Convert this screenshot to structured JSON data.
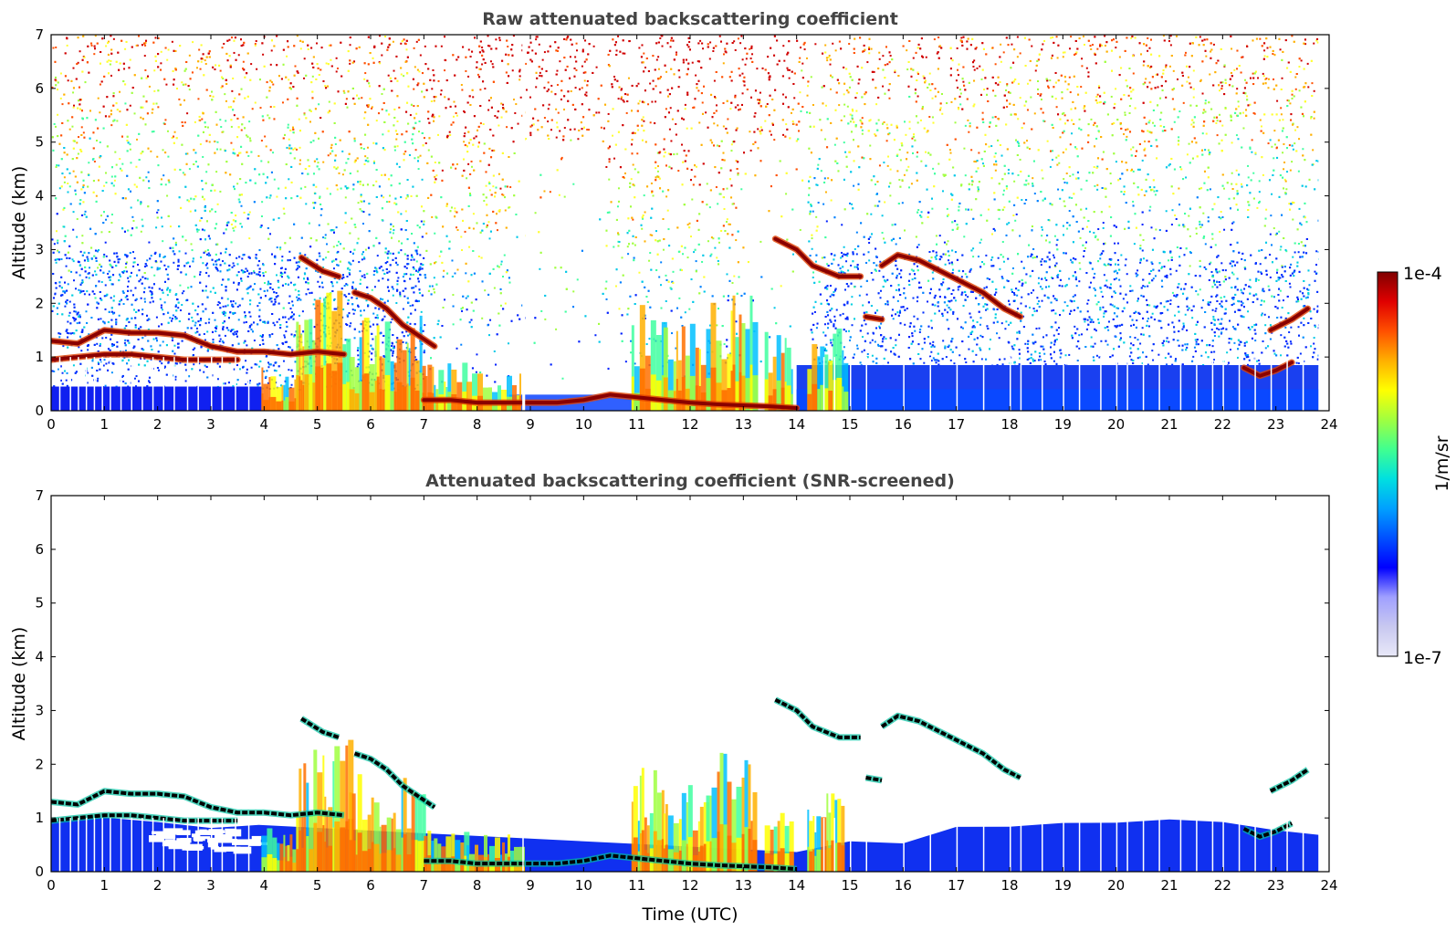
{
  "chart_data": [
    {
      "type": "heatmap",
      "title": "Raw attenuated backscattering coefficient",
      "xlabel": "",
      "ylabel": "Altitude (km)",
      "xlim": [
        0,
        24
      ],
      "ylim": [
        0,
        7
      ],
      "x_ticks": [
        "0",
        "1",
        "2",
        "3",
        "4",
        "5",
        "6",
        "7",
        "8",
        "9",
        "10",
        "11",
        "12",
        "13",
        "14",
        "15",
        "16",
        "17",
        "18",
        "19",
        "20",
        "21",
        "22",
        "23",
        "24"
      ],
      "y_ticks": [
        "0",
        "1",
        "2",
        "3",
        "4",
        "5",
        "6",
        "7"
      ],
      "data_end_time": 23.8,
      "boundary_layer_top_km": 0.45,
      "cloud_layers": [
        {
          "name": "layer_a",
          "points": [
            [
              0,
              1.3
            ],
            [
              0.5,
              1.25
            ],
            [
              1,
              1.5
            ],
            [
              1.5,
              1.45
            ],
            [
              2,
              1.45
            ],
            [
              2.5,
              1.4
            ],
            [
              3,
              1.2
            ],
            [
              3.5,
              1.1
            ],
            [
              4,
              1.1
            ],
            [
              4.5,
              1.05
            ],
            [
              5,
              1.1
            ],
            [
              5.5,
              1.05
            ]
          ]
        },
        {
          "name": "layer_b",
          "points": [
            [
              0,
              0.95
            ],
            [
              0.5,
              1.0
            ],
            [
              1,
              1.05
            ],
            [
              1.5,
              1.05
            ],
            [
              2,
              1.0
            ],
            [
              2.5,
              0.95
            ],
            [
              3,
              0.95
            ],
            [
              3.5,
              0.95
            ]
          ]
        },
        {
          "name": "layer_c",
          "points": [
            [
              4.7,
              2.85
            ],
            [
              5.1,
              2.6
            ],
            [
              5.4,
              2.5
            ]
          ]
        },
        {
          "name": "layer_d",
          "points": [
            [
              5.7,
              2.2
            ],
            [
              6.0,
              2.1
            ],
            [
              6.3,
              1.9
            ],
            [
              6.6,
              1.6
            ],
            [
              6.9,
              1.4
            ],
            [
              7.2,
              1.2
            ]
          ]
        },
        {
          "name": "layer_e",
          "points": [
            [
              7.0,
              0.2
            ],
            [
              7.5,
              0.2
            ],
            [
              8.0,
              0.15
            ],
            [
              8.8,
              0.15
            ],
            [
              9.5,
              0.15
            ],
            [
              10.0,
              0.2
            ],
            [
              10.5,
              0.3
            ],
            [
              11.0,
              0.25
            ],
            [
              11.5,
              0.2
            ],
            [
              12.0,
              0.15
            ],
            [
              12.5,
              0.12
            ],
            [
              13.0,
              0.1
            ],
            [
              13.5,
              0.08
            ],
            [
              14.0,
              0.05
            ]
          ]
        },
        {
          "name": "layer_f",
          "points": [
            [
              13.6,
              3.2
            ],
            [
              14.0,
              3.0
            ],
            [
              14.3,
              2.7
            ],
            [
              14.8,
              2.5
            ],
            [
              15.2,
              2.5
            ]
          ]
        },
        {
          "name": "layer_g",
          "points": [
            [
              15.3,
              1.75
            ],
            [
              15.6,
              1.7
            ]
          ]
        },
        {
          "name": "layer_h",
          "points": [
            [
              15.6,
              2.7
            ],
            [
              15.9,
              2.9
            ],
            [
              16.3,
              2.8
            ],
            [
              16.7,
              2.6
            ],
            [
              17.1,
              2.4
            ],
            [
              17.5,
              2.2
            ],
            [
              17.9,
              1.9
            ],
            [
              18.2,
              1.75
            ]
          ]
        },
        {
          "name": "layer_i",
          "points": [
            [
              22.9,
              1.5
            ],
            [
              23.3,
              1.7
            ],
            [
              23.6,
              1.9
            ]
          ]
        },
        {
          "name": "layer_j",
          "points": [
            [
              22.4,
              0.8
            ],
            [
              22.7,
              0.65
            ],
            [
              23.0,
              0.75
            ],
            [
              23.3,
              0.9
            ]
          ]
        }
      ],
      "aerosol_columns": [
        {
          "x": [
            3.95,
            4.6
          ],
          "top": 1.0
        },
        {
          "x": [
            4.6,
            5.6
          ],
          "top": 2.5
        },
        {
          "x": [
            5.6,
            7.0
          ],
          "top": 1.9
        },
        {
          "x": [
            7.0,
            7.8
          ],
          "top": 0.9
        },
        {
          "x": [
            7.8,
            8.8
          ],
          "top": 0.7
        },
        {
          "x": [
            10.9,
            11.5
          ],
          "top": 2.0
        },
        {
          "x": [
            11.5,
            12.3
          ],
          "top": 1.8
        },
        {
          "x": [
            12.3,
            13.2
          ],
          "top": 2.3
        },
        {
          "x": [
            13.4,
            13.9
          ],
          "top": 1.5
        },
        {
          "x": [
            14.2,
            14.9
          ],
          "top": 1.7
        }
      ]
    },
    {
      "type": "heatmap",
      "title": "Attenuated backscattering coefficient (SNR-screened)",
      "xlabel": "Time (UTC)",
      "ylabel": "Altitude (km)",
      "xlim": [
        0,
        24
      ],
      "ylim": [
        0,
        7
      ],
      "x_ticks": [
        "0",
        "1",
        "2",
        "3",
        "4",
        "5",
        "6",
        "7",
        "8",
        "9",
        "10",
        "11",
        "12",
        "13",
        "14",
        "15",
        "16",
        "17",
        "18",
        "19",
        "20",
        "21",
        "22",
        "23",
        "24"
      ],
      "y_ticks": [
        "0",
        "1",
        "2",
        "3",
        "4",
        "5",
        "6",
        "7"
      ],
      "screened_boundary_layer": [
        [
          0,
          0.95
        ],
        [
          1,
          1.0
        ],
        [
          2,
          0.9
        ],
        [
          3,
          0.85
        ],
        [
          3.9,
          0.9
        ],
        [
          14.0,
          0.4
        ],
        [
          15.0,
          0.55
        ],
        [
          16.0,
          0.5
        ],
        [
          17.0,
          0.8
        ],
        [
          18.0,
          0.85
        ],
        [
          19.0,
          0.9
        ],
        [
          20.0,
          0.95
        ],
        [
          21.0,
          1.0
        ],
        [
          22.0,
          0.95
        ],
        [
          23.0,
          0.8
        ],
        [
          23.8,
          0.7
        ]
      ]
    }
  ],
  "colorbar": {
    "label": "1/m/sr",
    "max_label": "1e-4",
    "min_label": "1e-7",
    "scale": "log",
    "colormap": [
      "#e8e8f8",
      "#c8c8f0",
      "#a0a0ff",
      "#0000ff",
      "#0050ff",
      "#00a0ff",
      "#00e0e0",
      "#40ff90",
      "#a0ff40",
      "#ffff00",
      "#ffb000",
      "#ff5000",
      "#e00000",
      "#800000"
    ]
  }
}
